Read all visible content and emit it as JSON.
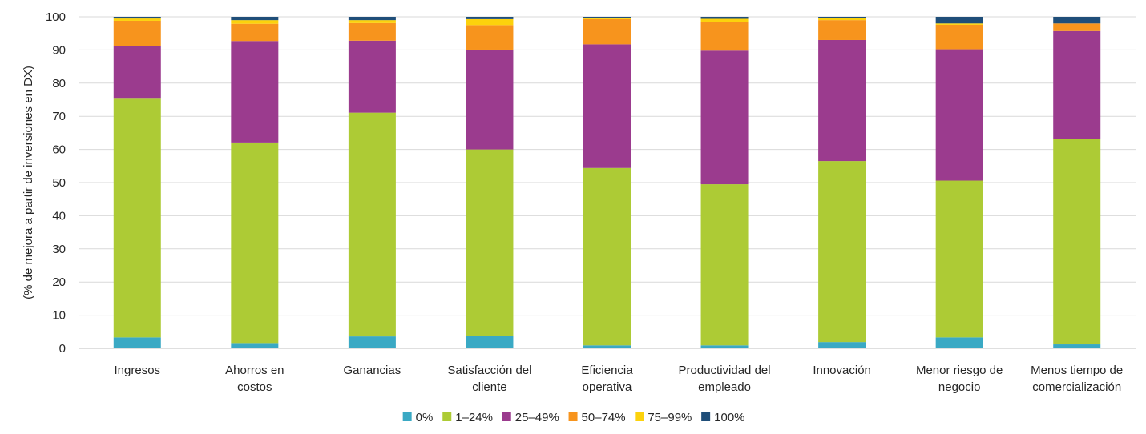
{
  "chart_data": {
    "type": "bar",
    "stacked": true,
    "ylabel": "(% de mejora a partir de inversiones en DX)",
    "ylim": [
      0,
      100
    ],
    "yticks": [
      0,
      10,
      20,
      30,
      40,
      50,
      60,
      70,
      80,
      90,
      100
    ],
    "grid": true,
    "legend_position": "bottom",
    "categories": [
      [
        "Ingresos"
      ],
      [
        "Ahorros en",
        "costos"
      ],
      [
        "Ganancias"
      ],
      [
        "Satisfacción del",
        "cliente"
      ],
      [
        "Eficiencia",
        "operativa"
      ],
      [
        "Productividad del",
        "empleado"
      ],
      [
        "Innovación"
      ],
      [
        "Menor riesgo de",
        "negocio"
      ],
      [
        "Menos tiempo de",
        "comercialización"
      ]
    ],
    "series": [
      {
        "name": "0%",
        "color": "#3aa9c4",
        "values": [
          3.3,
          1.6,
          3.6,
          3.7,
          0.9,
          0.9,
          1.9,
          3.3,
          1.2
        ]
      },
      {
        "name": "1–24%",
        "color": "#adcb35",
        "values": [
          72.0,
          60.5,
          67.5,
          56.3,
          53.5,
          48.6,
          54.6,
          47.3,
          62.0
        ]
      },
      {
        "name": "25–49%",
        "color": "#9b3b8e",
        "values": [
          16.0,
          30.6,
          21.7,
          30.1,
          37.3,
          40.3,
          36.5,
          39.6,
          32.5
        ]
      },
      {
        "name": "50–74%",
        "color": "#f7941d",
        "values": [
          7.5,
          5.2,
          5.3,
          7.4,
          7.6,
          8.6,
          6.0,
          7.4,
          2.3
        ]
      },
      {
        "name": "75–99%",
        "color": "#fcd20c",
        "values": [
          0.7,
          1.1,
          0.9,
          1.8,
          0.3,
          1.0,
          0.7,
          0.4,
          0.0
        ]
      },
      {
        "name": "100%",
        "color": "#1f4e79",
        "values": [
          0.5,
          1.0,
          1.0,
          0.7,
          0.4,
          0.6,
          0.3,
          2.0,
          2.0
        ]
      }
    ]
  }
}
